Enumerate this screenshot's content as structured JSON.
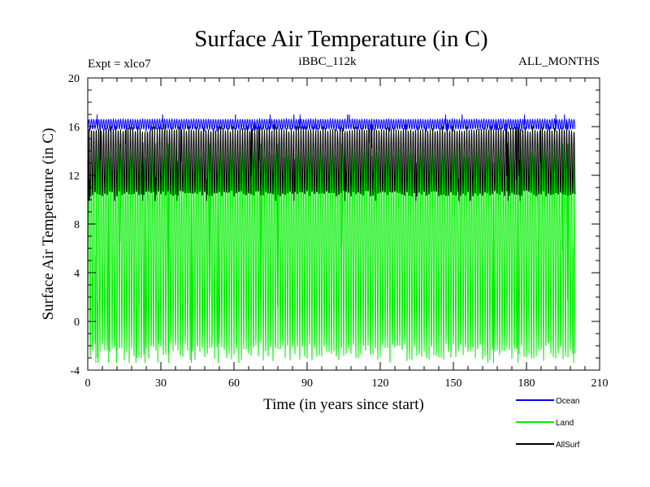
{
  "chart_data": {
    "type": "line",
    "title": "Surface Air Temperature (in C)",
    "subtitle_left": "Expt = xlco7",
    "subtitle_center": "iBBC_112k",
    "subtitle_right": "ALL_MONTHS",
    "xlabel": "Time (in years since start)",
    "ylabel": "Surface Air Temperature (in C)",
    "xlim": [
      0,
      210
    ],
    "ylim": [
      -4,
      20
    ],
    "xticks": [
      0,
      30,
      60,
      90,
      120,
      150,
      180,
      210
    ],
    "yticks": [
      -4,
      0,
      4,
      8,
      12,
      16,
      20
    ],
    "x_range_data": [
      0,
      200
    ],
    "grid": false,
    "legend_position": "bottom-right",
    "series": [
      {
        "name": "Land",
        "color": "#00ee00",
        "min": -2.5,
        "max": 14.2,
        "extreme_min": -3.4,
        "extreme_max": 14.6
      },
      {
        "name": "AllSurf",
        "color": "#000000",
        "min": 10.5,
        "max": 15.8,
        "extreme_min": 9.9,
        "extreme_max": 16.2
      },
      {
        "name": "Ocean",
        "color": "#0000ff",
        "min": 15.8,
        "max": 16.6,
        "extreme_min": 15.6,
        "extreme_max": 17.0
      }
    ],
    "legend": [
      {
        "name": "Ocean",
        "color": "#0000ff"
      },
      {
        "name": "Land",
        "color": "#00ee00"
      },
      {
        "name": "AllSurf",
        "color": "#000000"
      }
    ]
  }
}
